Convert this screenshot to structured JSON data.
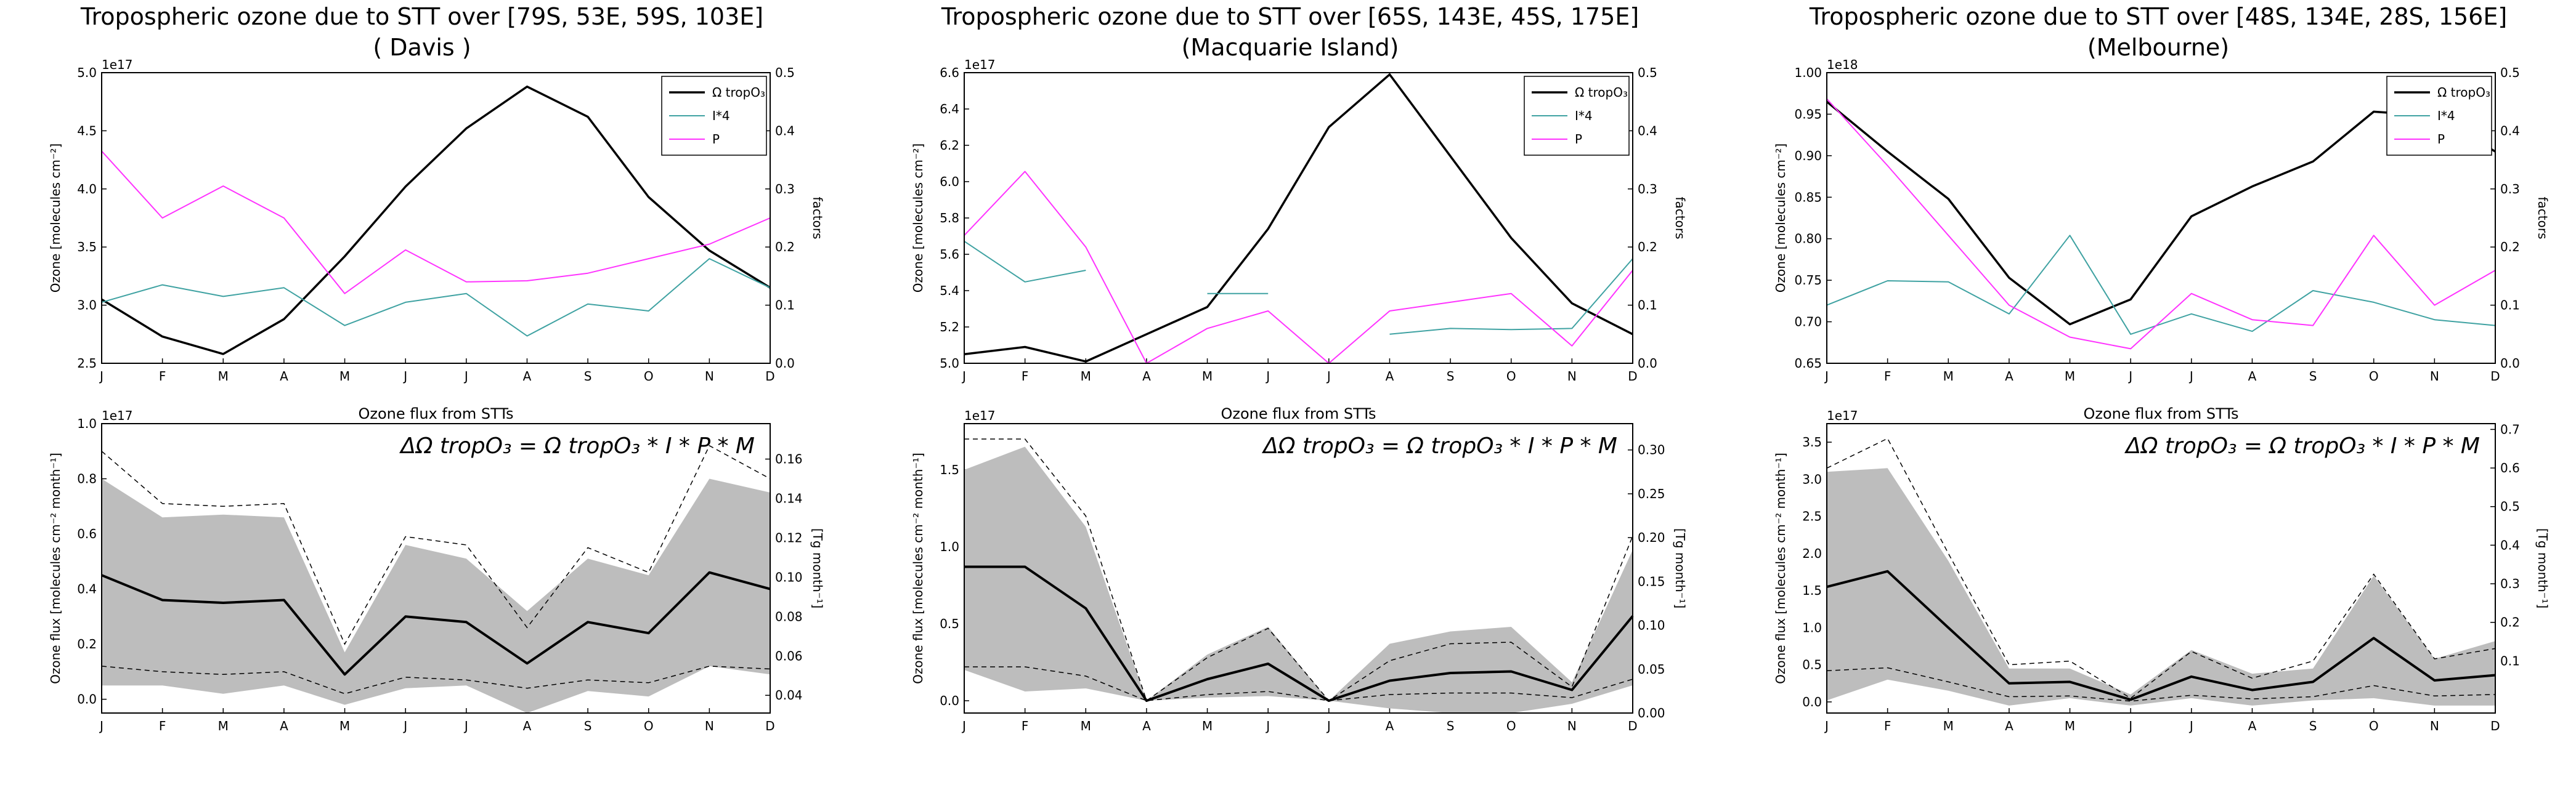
{
  "figure": {
    "panels": [
      {
        "title": "Tropospheric ozone due to STT over [79S, 53E, 59S, 103E]",
        "subtitle": "( Davis )"
      },
      {
        "title": "Tropospheric ozone due to STT over [65S, 143E, 45S, 175E]",
        "subtitle": "(Macquarie Island)"
      },
      {
        "title": "Tropospheric ozone due to STT over [48S, 134E, 28S, 156E]",
        "subtitle": "(Melbourne)"
      }
    ]
  },
  "colors": {
    "omega": "#000000",
    "i4": "#3fa2a2",
    "p": "#ff33ff",
    "band": "#bdbdbd",
    "mean": "#000000"
  },
  "chart_data": [
    {
      "type": "line",
      "title": "Tropospheric ozone due to STT over [79S, 53E, 59S, 103E]",
      "subtitle": "( Davis )",
      "categories": [
        "J",
        "F",
        "M",
        "A",
        "M",
        "J",
        "J",
        "A",
        "S",
        "O",
        "N",
        "D"
      ],
      "ylabel": "Ozone [molecules cm⁻²]",
      "y2label": "factors",
      "yoffset": "1e17",
      "ylim": [
        2.5,
        5.0
      ],
      "yticks": [
        "2.5",
        "3.0",
        "3.5",
        "4.0",
        "4.5",
        "5.0"
      ],
      "y2lim": [
        0.0,
        0.5
      ],
      "y2ticks": [
        "0.0",
        "0.1",
        "0.2",
        "0.3",
        "0.4",
        "0.5"
      ],
      "legend_position": "top-right",
      "legend": [
        "Ω tropO₃",
        "I*4",
        "P"
      ],
      "series": [
        {
          "name": "Ω tropO₃",
          "axis": "left",
          "values": [
            3.05,
            2.73,
            2.58,
            2.88,
            3.42,
            4.02,
            4.52,
            4.88,
            4.62,
            3.93,
            3.47,
            3.15
          ]
        },
        {
          "name": "I*4",
          "axis": "right",
          "values": [
            0.105,
            0.135,
            0.115,
            0.13,
            0.065,
            0.105,
            0.12,
            0.047,
            0.102,
            0.09,
            0.18,
            0.13
          ]
        },
        {
          "name": "P",
          "axis": "right",
          "values": [
            0.365,
            0.25,
            0.305,
            0.25,
            0.12,
            0.195,
            0.14,
            0.142,
            0.155,
            0.18,
            0.205,
            0.25
          ]
        }
      ]
    },
    {
      "type": "area",
      "title": "Ozone flux from STTs",
      "formula": "ΔΩ tropO₃ = Ω tropO₃ * I * P * M",
      "categories": [
        "J",
        "F",
        "M",
        "A",
        "M",
        "J",
        "J",
        "A",
        "S",
        "O",
        "N",
        "D"
      ],
      "ylabel": "Ozone flux [molecules cm⁻² month⁻¹]",
      "y2label": "[Tg month⁻¹]",
      "yoffset": "1e17",
      "ylim": [
        -0.05,
        1.0
      ],
      "yticks": [
        "0.0",
        "0.2",
        "0.4",
        "0.6",
        "0.8",
        "1.0"
      ],
      "y2lim": [
        0.031,
        0.178
      ],
      "y2ticks": [
        "0.04",
        "0.06",
        "0.08",
        "0.10",
        "0.12",
        "0.14",
        "0.16"
      ],
      "series": [
        {
          "name": "mean",
          "values": [
            0.45,
            0.36,
            0.35,
            0.36,
            0.09,
            0.3,
            0.28,
            0.13,
            0.28,
            0.24,
            0.46,
            0.4
          ]
        },
        {
          "name": "upper",
          "values": [
            0.9,
            0.71,
            0.7,
            0.71,
            0.2,
            0.59,
            0.56,
            0.26,
            0.55,
            0.46,
            0.92,
            0.8
          ]
        },
        {
          "name": "lower",
          "values": [
            0.12,
            0.1,
            0.09,
            0.1,
            0.02,
            0.08,
            0.07,
            0.04,
            0.07,
            0.06,
            0.12,
            0.11
          ]
        },
        {
          "name": "band_top",
          "values": [
            0.8,
            0.66,
            0.67,
            0.66,
            0.17,
            0.56,
            0.51,
            0.32,
            0.51,
            0.45,
            0.8,
            0.75
          ]
        },
        {
          "name": "band_bottom",
          "values": [
            0.05,
            0.05,
            0.02,
            0.05,
            -0.02,
            0.04,
            0.05,
            -0.05,
            0.03,
            0.01,
            0.12,
            0.09
          ]
        }
      ]
    },
    {
      "type": "line",
      "title": "Tropospheric ozone due to STT over [65S, 143E, 45S, 175E]",
      "subtitle": "(Macquarie Island)",
      "categories": [
        "J",
        "F",
        "M",
        "A",
        "M",
        "J",
        "J",
        "A",
        "S",
        "O",
        "N",
        "D"
      ],
      "ylabel": "Ozone [molecules cm⁻²]",
      "y2label": "factors",
      "yoffset": "1e17",
      "ylim": [
        5.0,
        6.6
      ],
      "yticks": [
        "5.0",
        "5.2",
        "5.4",
        "5.6",
        "5.8",
        "6.0",
        "6.2",
        "6.4",
        "6.6"
      ],
      "y2lim": [
        0.0,
        0.5
      ],
      "y2ticks": [
        "0.0",
        "0.1",
        "0.2",
        "0.3",
        "0.4",
        "0.5"
      ],
      "legend_position": "top-right",
      "legend": [
        "Ω tropO₃",
        "I*4",
        "P"
      ],
      "series": [
        {
          "name": "Ω tropO₃",
          "axis": "left",
          "values": [
            5.05,
            5.09,
            5.01,
            5.16,
            5.31,
            5.74,
            6.3,
            6.59,
            6.14,
            5.69,
            5.33,
            5.16
          ]
        },
        {
          "name": "I*4",
          "axis": "right",
          "values": [
            0.21,
            0.14,
            0.16,
            null,
            0.12,
            0.12,
            null,
            0.05,
            0.06,
            0.058,
            0.06,
            0.18
          ]
        },
        {
          "name": "P",
          "axis": "right",
          "values": [
            0.22,
            0.33,
            0.2,
            0.0,
            0.06,
            0.09,
            0.0,
            0.09,
            0.105,
            0.12,
            0.03,
            0.16
          ]
        }
      ]
    },
    {
      "type": "area",
      "title": "Ozone flux from STTs",
      "formula": "ΔΩ tropO₃ = Ω tropO₃ * I * P * M",
      "categories": [
        "J",
        "F",
        "M",
        "A",
        "M",
        "J",
        "J",
        "A",
        "S",
        "O",
        "N",
        "D"
      ],
      "ylabel": "Ozone flux [molecules cm⁻² month⁻¹]",
      "y2label": "[Tg month⁻¹]",
      "yoffset": "1e17",
      "ylim": [
        -0.08,
        1.8
      ],
      "yticks": [
        "0.0",
        "0.5",
        "1.0",
        "1.5"
      ],
      "y2lim": [
        0.0,
        0.33
      ],
      "y2ticks": [
        "0.00",
        "0.05",
        "0.10",
        "0.15",
        "0.20",
        "0.25",
        "0.30"
      ],
      "series": [
        {
          "name": "mean",
          "values": [
            0.87,
            0.87,
            0.6,
            0.0,
            0.14,
            0.24,
            0.0,
            0.13,
            0.18,
            0.19,
            0.07,
            0.55
          ]
        },
        {
          "name": "upper",
          "values": [
            1.7,
            1.7,
            1.2,
            0.0,
            0.28,
            0.47,
            0.0,
            0.26,
            0.37,
            0.38,
            0.09,
            1.07
          ]
        },
        {
          "name": "lower",
          "values": [
            0.22,
            0.22,
            0.16,
            0.0,
            0.04,
            0.06,
            0.0,
            0.04,
            0.05,
            0.05,
            0.02,
            0.14
          ]
        },
        {
          "name": "band_top",
          "values": [
            1.5,
            1.65,
            1.13,
            0.0,
            0.3,
            0.48,
            0.0,
            0.37,
            0.45,
            0.48,
            0.12,
            0.98
          ]
        },
        {
          "name": "band_bottom",
          "values": [
            0.2,
            0.06,
            0.08,
            0.0,
            0.02,
            0.03,
            0.0,
            -0.05,
            -0.08,
            -0.08,
            -0.02,
            0.1
          ]
        }
      ]
    },
    {
      "type": "line",
      "title": "Tropospheric ozone due to STT over [48S, 134E, 28S, 156E]",
      "subtitle": "(Melbourne)",
      "categories": [
        "J",
        "F",
        "M",
        "A",
        "M",
        "J",
        "J",
        "A",
        "S",
        "O",
        "N",
        "D"
      ],
      "ylabel": "Ozone [molecules cm⁻²]",
      "y2label": "factors",
      "yoffset": "1e18",
      "ylim": [
        0.65,
        1.0
      ],
      "yticks": [
        "0.65",
        "0.70",
        "0.75",
        "0.80",
        "0.85",
        "0.90",
        "0.95",
        "1.00"
      ],
      "y2lim": [
        0.0,
        0.5
      ],
      "y2ticks": [
        "0.0",
        "0.1",
        "0.2",
        "0.3",
        "0.4",
        "0.5"
      ],
      "legend_position": "top-right",
      "legend": [
        "Ω tropO₃",
        "I*4",
        "P"
      ],
      "series": [
        {
          "name": "Ω tropO₃",
          "axis": "left",
          "values": [
            0.965,
            0.905,
            0.848,
            0.753,
            0.697,
            0.727,
            0.827,
            0.863,
            0.893,
            0.953,
            0.948,
            0.905
          ]
        },
        {
          "name": "I*4",
          "axis": "right",
          "values": [
            0.1,
            0.142,
            0.14,
            0.085,
            0.22,
            0.05,
            0.085,
            0.055,
            0.125,
            0.105,
            0.075,
            0.065
          ]
        },
        {
          "name": "P",
          "axis": "right",
          "values": [
            0.455,
            0.34,
            0.22,
            0.1,
            0.045,
            0.025,
            0.12,
            0.075,
            0.065,
            0.22,
            0.1,
            0.16
          ]
        }
      ]
    },
    {
      "type": "area",
      "title": "Ozone flux from STTs",
      "formula": "ΔΩ tropO₃ = Ω tropO₃ * I * P * M",
      "categories": [
        "J",
        "F",
        "M",
        "A",
        "M",
        "J",
        "J",
        "A",
        "S",
        "O",
        "N",
        "D"
      ],
      "ylabel": "Ozone flux [molecules cm⁻² month⁻¹]",
      "y2label": "[Tg month⁻¹]",
      "yoffset": "1e17",
      "ylim": [
        -0.15,
        3.75
      ],
      "yticks": [
        "0.0",
        "0.5",
        "1.0",
        "1.5",
        "2.0",
        "2.5",
        "3.0",
        "3.5"
      ],
      "y2lim": [
        -0.035,
        0.715
      ],
      "y2ticks": [
        "0.1",
        "0.2",
        "0.3",
        "0.4",
        "0.5",
        "0.6",
        "0.7"
      ],
      "series": [
        {
          "name": "mean",
          "values": [
            1.55,
            1.76,
            1.0,
            0.25,
            0.27,
            0.03,
            0.34,
            0.16,
            0.27,
            0.86,
            0.29,
            0.36
          ]
        },
        {
          "name": "upper",
          "values": [
            3.15,
            3.55,
            2.0,
            0.5,
            0.55,
            0.05,
            0.68,
            0.32,
            0.55,
            1.72,
            0.58,
            0.72
          ]
        },
        {
          "name": "lower",
          "values": [
            0.42,
            0.46,
            0.27,
            0.07,
            0.08,
            0.01,
            0.09,
            0.04,
            0.07,
            0.22,
            0.08,
            0.1
          ]
        },
        {
          "name": "band_top",
          "values": [
            3.1,
            3.15,
            1.9,
            0.45,
            0.45,
            0.1,
            0.7,
            0.38,
            0.45,
            1.7,
            0.58,
            0.82
          ]
        },
        {
          "name": "band_bottom",
          "values": [
            0.02,
            0.3,
            0.15,
            -0.05,
            0.05,
            -0.05,
            0.05,
            -0.05,
            0.02,
            0.05,
            -0.05,
            -0.05
          ]
        }
      ]
    }
  ]
}
